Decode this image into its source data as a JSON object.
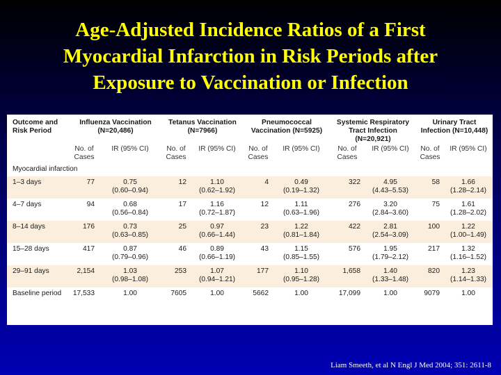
{
  "title": {
    "line1": "Age-Adjusted Incidence Ratios of a First",
    "line2": "Myocardial Infarction in Risk Periods after",
    "line3": "Exposure to Vaccination or Infection"
  },
  "table": {
    "outcome_header": "Outcome and Risk Period",
    "groups": [
      {
        "label": "Influenza Vaccination (N=20,486)"
      },
      {
        "label": "Tetanus Vaccination (N=7966)"
      },
      {
        "label": "Pneumococcal Vaccination (N=5925)"
      },
      {
        "label": "Systemic Respiratory Tract Infection (N=20,921)"
      },
      {
        "label": "Urinary Tract Infection (N=10,448)"
      }
    ],
    "sub_cases": "No. of Cases",
    "sub_ir": "IR (95% CI)",
    "section": "Myocardial infarction",
    "rows": [
      {
        "period": "1–3 days",
        "cells": [
          {
            "cases": "77",
            "ir": "0.75",
            "ci": "(0.60–0.94)"
          },
          {
            "cases": "12",
            "ir": "1.10",
            "ci": "(0.62–1.92)"
          },
          {
            "cases": "4",
            "ir": "0.49",
            "ci": "(0.19–1.32)"
          },
          {
            "cases": "322",
            "ir": "4.95",
            "ci": "(4.43–5.53)"
          },
          {
            "cases": "58",
            "ir": "1.66",
            "ci": "(1.28–2.14)"
          }
        ]
      },
      {
        "period": "4–7 days",
        "cells": [
          {
            "cases": "94",
            "ir": "0.68",
            "ci": "(0.56–0.84)"
          },
          {
            "cases": "17",
            "ir": "1.16",
            "ci": "(0.72–1.87)"
          },
          {
            "cases": "12",
            "ir": "1.11",
            "ci": "(0.63–1.96)"
          },
          {
            "cases": "276",
            "ir": "3.20",
            "ci": "(2.84–3.60)"
          },
          {
            "cases": "75",
            "ir": "1.61",
            "ci": "(1.28–2.02)"
          }
        ]
      },
      {
        "period": "8–14 days",
        "cells": [
          {
            "cases": "176",
            "ir": "0.73",
            "ci": "(0.63–0.85)"
          },
          {
            "cases": "25",
            "ir": "0.97",
            "ci": "(0.66–1.44)"
          },
          {
            "cases": "23",
            "ir": "1.22",
            "ci": "(0.81–1.84)"
          },
          {
            "cases": "422",
            "ir": "2.81",
            "ci": "(2.54–3.09)"
          },
          {
            "cases": "100",
            "ir": "1.22",
            "ci": "(1.00–1.49)"
          }
        ]
      },
      {
        "period": "15–28 days",
        "cells": [
          {
            "cases": "417",
            "ir": "0.87",
            "ci": "(0.79–0.96)"
          },
          {
            "cases": "46",
            "ir": "0.89",
            "ci": "(0.66–1.19)"
          },
          {
            "cases": "43",
            "ir": "1.15",
            "ci": "(0.85–1.55)"
          },
          {
            "cases": "576",
            "ir": "1.95",
            "ci": "(1.79–2.12)"
          },
          {
            "cases": "217",
            "ir": "1.32",
            "ci": "(1.16–1.52)"
          }
        ]
      },
      {
        "period": "29–91 days",
        "cells": [
          {
            "cases": "2,154",
            "ir": "1.03",
            "ci": "(0.98–1.08)"
          },
          {
            "cases": "253",
            "ir": "1.07",
            "ci": "(0.94–1.21)"
          },
          {
            "cases": "177",
            "ir": "1.10",
            "ci": "(0.95–1.28)"
          },
          {
            "cases": "1,658",
            "ir": "1.40",
            "ci": "(1.33–1.48)"
          },
          {
            "cases": "820",
            "ir": "1.23",
            "ci": "(1.14–1.33)"
          }
        ]
      },
      {
        "period": "Baseline period",
        "cells": [
          {
            "cases": "17,533",
            "ir": "1.00",
            "ci": ""
          },
          {
            "cases": "7605",
            "ir": "1.00",
            "ci": ""
          },
          {
            "cases": "5662",
            "ir": "1.00",
            "ci": ""
          },
          {
            "cases": "17,099",
            "ir": "1.00",
            "ci": ""
          },
          {
            "cases": "9079",
            "ir": "1.00",
            "ci": ""
          }
        ]
      }
    ]
  },
  "citation": "Liam Smeeth, et al N Engl J Med 2004; 351: 2611-8",
  "colors": {
    "title": "#ffff00",
    "row_tint": "#fbeedd",
    "background_bottom": "#0000b4"
  }
}
